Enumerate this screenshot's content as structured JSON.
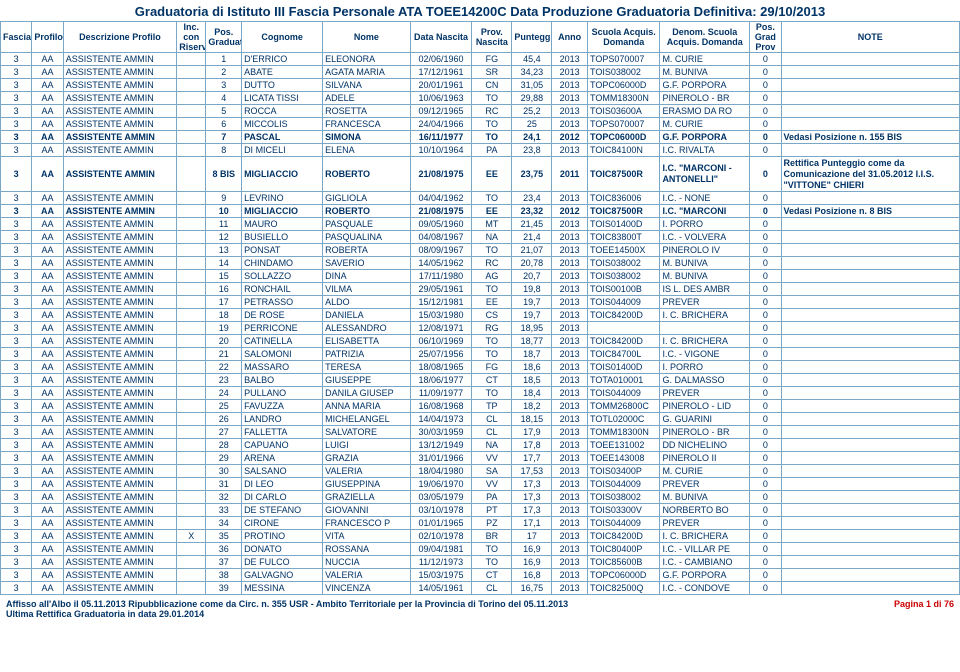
{
  "title": "Graduatoria di Istituto III Fascia Personale ATA TOEE14200C Data Produzione Graduatoria Definitiva: 29/10/2013",
  "headers": {
    "fascia": "Fascia",
    "profilo": "Profilo",
    "desc": "Descrizione Profilo",
    "inc": "Inc. con Riserva",
    "pos": "Pos. Graduatoria",
    "cognome": "Cognome",
    "nome": "Nome",
    "data": "Data Nascita",
    "provn": "Prov. Nascita",
    "punt": "Punteggio",
    "anno": "Anno",
    "scuola": "Scuola Acquis. Domanda",
    "denom": "Denom. Scuola Acquis. Domanda",
    "grad": "Pos. Grad Prov",
    "note": "NOTE"
  },
  "rows": [
    {
      "f": "3",
      "p": "AA",
      "d": "ASSISTENTE AMMIN",
      "i": "",
      "pos": "1",
      "cog": "D'ERRICO",
      "nom": "ELEONORA",
      "dn": "02/06/1960",
      "pv": "FG",
      "pt": "45,4",
      "an": "2013",
      "sc": "TOPS070007",
      "de": "M. CURIE",
      "g": "0",
      "nt": "",
      "b": false
    },
    {
      "f": "3",
      "p": "AA",
      "d": "ASSISTENTE AMMIN",
      "i": "",
      "pos": "2",
      "cog": "ABATE",
      "nom": "AGATA MARIA",
      "dn": "17/12/1961",
      "pv": "SR",
      "pt": "34,23",
      "an": "2013",
      "sc": "TOIS038002",
      "de": "M. BUNIVA",
      "g": "0",
      "nt": "",
      "b": false
    },
    {
      "f": "3",
      "p": "AA",
      "d": "ASSISTENTE AMMIN",
      "i": "",
      "pos": "3",
      "cog": "DUTTO",
      "nom": "SILVANA",
      "dn": "20/01/1961",
      "pv": "CN",
      "pt": "31,05",
      "an": "2013",
      "sc": "TOPC06000D",
      "de": "G.F. PORPORA",
      "g": "0",
      "nt": "",
      "b": false
    },
    {
      "f": "3",
      "p": "AA",
      "d": "ASSISTENTE AMMIN",
      "i": "",
      "pos": "4",
      "cog": "LICATA TISSI",
      "nom": "ADELE",
      "dn": "10/06/1963",
      "pv": "TO",
      "pt": "29,88",
      "an": "2013",
      "sc": "TOMM18300N",
      "de": "PINEROLO - BR",
      "g": "0",
      "nt": "",
      "b": false
    },
    {
      "f": "3",
      "p": "AA",
      "d": "ASSISTENTE AMMIN",
      "i": "",
      "pos": "5",
      "cog": "ROCCA",
      "nom": "ROSETTA",
      "dn": "09/12/1965",
      "pv": "RC",
      "pt": "25,2",
      "an": "2013",
      "sc": "TOIS03600A",
      "de": "ERASMO DA RO",
      "g": "0",
      "nt": "",
      "b": false
    },
    {
      "f": "3",
      "p": "AA",
      "d": "ASSISTENTE AMMIN",
      "i": "",
      "pos": "6",
      "cog": "MICCOLIS",
      "nom": "FRANCESCA",
      "dn": "24/04/1966",
      "pv": "TO",
      "pt": "25",
      "an": "2013",
      "sc": "TOPS070007",
      "de": "M. CURIE",
      "g": "0",
      "nt": "",
      "b": false
    },
    {
      "f": "3",
      "p": "AA",
      "d": "ASSISTENTE AMMIN",
      "i": "",
      "pos": "7",
      "cog": "PASCAL",
      "nom": "SIMONA",
      "dn": "16/11/1977",
      "pv": "TO",
      "pt": "24,1",
      "an": "2012",
      "sc": "TOPC06000D",
      "de": "G.F. PORPORA",
      "g": "0",
      "nt": "Vedasi Posizione n. 155 BIS",
      "b": true
    },
    {
      "f": "3",
      "p": "AA",
      "d": "ASSISTENTE AMMIN",
      "i": "",
      "pos": "8",
      "cog": "DI MICELI",
      "nom": "ELENA",
      "dn": "10/10/1964",
      "pv": "PA",
      "pt": "23,8",
      "an": "2013",
      "sc": "TOIC84100N",
      "de": "I.C. RIVALTA",
      "g": "0",
      "nt": "",
      "b": false
    },
    {
      "f": "3",
      "p": "AA",
      "d": "ASSISTENTE AMMIN",
      "i": "",
      "pos": "8 BIS",
      "cog": "MIGLIACCIO",
      "nom": "ROBERTO",
      "dn": "21/08/1975",
      "pv": "EE",
      "pt": "23,75",
      "an": "2011",
      "sc": "TOIC87500R",
      "de": "I.C. \"MARCONI - ANTONELLI\"",
      "g": "0",
      "nt": "Rettifica Punteggio come da Comunicazione del 31.05.2012 I.I.S. \"VITTONE\" CHIERI",
      "b": true,
      "tall": true
    },
    {
      "f": "3",
      "p": "AA",
      "d": "ASSISTENTE AMMIN",
      "i": "",
      "pos": "9",
      "cog": "LEVRINO",
      "nom": "GIGLIOLA",
      "dn": "04/04/1962",
      "pv": "TO",
      "pt": "23,4",
      "an": "2013",
      "sc": "TOIC836006",
      "de": "I.C. - NONE",
      "g": "0",
      "nt": "",
      "b": false
    },
    {
      "f": "3",
      "p": "AA",
      "d": "ASSISTENTE AMMIN",
      "i": "",
      "pos": "10",
      "cog": "MIGLIACCIO",
      "nom": "ROBERTO",
      "dn": "21/08/1975",
      "pv": "EE",
      "pt": "23,32",
      "an": "2012",
      "sc": "TOIC87500R",
      "de": "I.C. \"MARCONI",
      "g": "0",
      "nt": "Vedasi Posizione n. 8 BIS",
      "b": true
    },
    {
      "f": "3",
      "p": "AA",
      "d": "ASSISTENTE AMMIN",
      "i": "",
      "pos": "11",
      "cog": "MAURO",
      "nom": "PASQUALE",
      "dn": "09/05/1960",
      "pv": "MT",
      "pt": "21,45",
      "an": "2013",
      "sc": "TOIS01400D",
      "de": "I. PORRO",
      "g": "0",
      "nt": "",
      "b": false
    },
    {
      "f": "3",
      "p": "AA",
      "d": "ASSISTENTE AMMIN",
      "i": "",
      "pos": "12",
      "cog": "BUSIELLO",
      "nom": "PASQUALINA",
      "dn": "04/08/1967",
      "pv": "NA",
      "pt": "21,4",
      "an": "2013",
      "sc": "TOIC83800T",
      "de": "I.C. - VOLVERA",
      "g": "0",
      "nt": "",
      "b": false
    },
    {
      "f": "3",
      "p": "AA",
      "d": "ASSISTENTE AMMIN",
      "i": "",
      "pos": "13",
      "cog": "PONSAT",
      "nom": "ROBERTA",
      "dn": "08/09/1967",
      "pv": "TO",
      "pt": "21,07",
      "an": "2013",
      "sc": "TOEE14500X",
      "de": "PINEROLO IV",
      "g": "0",
      "nt": "",
      "b": false
    },
    {
      "f": "3",
      "p": "AA",
      "d": "ASSISTENTE AMMIN",
      "i": "",
      "pos": "14",
      "cog": "CHINDAMO",
      "nom": "SAVERIO",
      "dn": "14/05/1962",
      "pv": "RC",
      "pt": "20,78",
      "an": "2013",
      "sc": "TOIS038002",
      "de": "M. BUNIVA",
      "g": "0",
      "nt": "",
      "b": false
    },
    {
      "f": "3",
      "p": "AA",
      "d": "ASSISTENTE AMMIN",
      "i": "",
      "pos": "15",
      "cog": "SOLLAZZO",
      "nom": "DINA",
      "dn": "17/11/1980",
      "pv": "AG",
      "pt": "20,7",
      "an": "2013",
      "sc": "TOIS038002",
      "de": "M. BUNIVA",
      "g": "0",
      "nt": "",
      "b": false
    },
    {
      "f": "3",
      "p": "AA",
      "d": "ASSISTENTE AMMIN",
      "i": "",
      "pos": "16",
      "cog": "RONCHAIL",
      "nom": "VILMA",
      "dn": "29/05/1961",
      "pv": "TO",
      "pt": "19,8",
      "an": "2013",
      "sc": "TOIS00100B",
      "de": "IS L. DES AMBR",
      "g": "0",
      "nt": "",
      "b": false
    },
    {
      "f": "3",
      "p": "AA",
      "d": "ASSISTENTE AMMIN",
      "i": "",
      "pos": "17",
      "cog": "PETRASSO",
      "nom": "ALDO",
      "dn": "15/12/1981",
      "pv": "EE",
      "pt": "19,7",
      "an": "2013",
      "sc": "TOIS044009",
      "de": "PREVER",
      "g": "0",
      "nt": "",
      "b": false
    },
    {
      "f": "3",
      "p": "AA",
      "d": "ASSISTENTE AMMIN",
      "i": "",
      "pos": "18",
      "cog": "DE ROSE",
      "nom": "DANIELA",
      "dn": "15/03/1980",
      "pv": "CS",
      "pt": "19,7",
      "an": "2013",
      "sc": "TOIC84200D",
      "de": "I. C. BRICHERA",
      "g": "0",
      "nt": "",
      "b": false
    },
    {
      "f": "3",
      "p": "AA",
      "d": "ASSISTENTE AMMIN",
      "i": "",
      "pos": "19",
      "cog": "PERRICONE",
      "nom": "ALESSANDRO",
      "dn": "12/08/1971",
      "pv": "RG",
      "pt": "18,95",
      "an": "2013",
      "sc": "",
      "de": "",
      "g": "0",
      "nt": "",
      "b": false
    },
    {
      "f": "3",
      "p": "AA",
      "d": "ASSISTENTE AMMIN",
      "i": "",
      "pos": "20",
      "cog": "CATINELLA",
      "nom": "ELISABETTA",
      "dn": "06/10/1969",
      "pv": "TO",
      "pt": "18,77",
      "an": "2013",
      "sc": "TOIC84200D",
      "de": "I. C. BRICHERA",
      "g": "0",
      "nt": "",
      "b": false
    },
    {
      "f": "3",
      "p": "AA",
      "d": "ASSISTENTE AMMIN",
      "i": "",
      "pos": "21",
      "cog": "SALOMONI",
      "nom": "PATRIZIA",
      "dn": "25/07/1956",
      "pv": "TO",
      "pt": "18,7",
      "an": "2013",
      "sc": "TOIC84700L",
      "de": "I.C. - VIGONE",
      "g": "0",
      "nt": "",
      "b": false
    },
    {
      "f": "3",
      "p": "AA",
      "d": "ASSISTENTE AMMIN",
      "i": "",
      "pos": "22",
      "cog": "MASSARO",
      "nom": "TERESA",
      "dn": "18/08/1965",
      "pv": "FG",
      "pt": "18,6",
      "an": "2013",
      "sc": "TOIS01400D",
      "de": "I. PORRO",
      "g": "0",
      "nt": "",
      "b": false
    },
    {
      "f": "3",
      "p": "AA",
      "d": "ASSISTENTE AMMIN",
      "i": "",
      "pos": "23",
      "cog": "BALBO",
      "nom": "GIUSEPPE",
      "dn": "18/06/1977",
      "pv": "CT",
      "pt": "18,5",
      "an": "2013",
      "sc": "TOTA010001",
      "de": "G. DALMASSO",
      "g": "0",
      "nt": "",
      "b": false
    },
    {
      "f": "3",
      "p": "AA",
      "d": "ASSISTENTE AMMIN",
      "i": "",
      "pos": "24",
      "cog": "PULLANO",
      "nom": "DANILA GIUSEP",
      "dn": "11/09/1977",
      "pv": "TO",
      "pt": "18,4",
      "an": "2013",
      "sc": "TOIS044009",
      "de": "PREVER",
      "g": "0",
      "nt": "",
      "b": false
    },
    {
      "f": "3",
      "p": "AA",
      "d": "ASSISTENTE AMMIN",
      "i": "",
      "pos": "25",
      "cog": "FAVUZZA",
      "nom": "ANNA MARIA",
      "dn": "16/08/1968",
      "pv": "TP",
      "pt": "18,2",
      "an": "2013",
      "sc": "TOMM26800C",
      "de": "PINEROLO - LID",
      "g": "0",
      "nt": "",
      "b": false
    },
    {
      "f": "3",
      "p": "AA",
      "d": "ASSISTENTE AMMIN",
      "i": "",
      "pos": "26",
      "cog": "LANDRO",
      "nom": "MICHELANGEL",
      "dn": "14/04/1973",
      "pv": "CL",
      "pt": "18,15",
      "an": "2013",
      "sc": "TOTL02000C",
      "de": "G. GUARINI",
      "g": "0",
      "nt": "",
      "b": false
    },
    {
      "f": "3",
      "p": "AA",
      "d": "ASSISTENTE AMMIN",
      "i": "",
      "pos": "27",
      "cog": "FALLETTA",
      "nom": "SALVATORE",
      "dn": "30/03/1959",
      "pv": "CL",
      "pt": "17,9",
      "an": "2013",
      "sc": "TOMM18300N",
      "de": "PINEROLO - BR",
      "g": "0",
      "nt": "",
      "b": false
    },
    {
      "f": "3",
      "p": "AA",
      "d": "ASSISTENTE AMMIN",
      "i": "",
      "pos": "28",
      "cog": "CAPUANO",
      "nom": "LUIGI",
      "dn": "13/12/1949",
      "pv": "NA",
      "pt": "17,8",
      "an": "2013",
      "sc": "TOEE131002",
      "de": "DD NICHELINO",
      "g": "0",
      "nt": "",
      "b": false
    },
    {
      "f": "3",
      "p": "AA",
      "d": "ASSISTENTE AMMIN",
      "i": "",
      "pos": "29",
      "cog": "ARENA",
      "nom": "GRAZIA",
      "dn": "31/01/1966",
      "pv": "VV",
      "pt": "17,7",
      "an": "2013",
      "sc": "TOEE143008",
      "de": "PINEROLO II",
      "g": "0",
      "nt": "",
      "b": false
    },
    {
      "f": "3",
      "p": "AA",
      "d": "ASSISTENTE AMMIN",
      "i": "",
      "pos": "30",
      "cog": "SALSANO",
      "nom": "VALERIA",
      "dn": "18/04/1980",
      "pv": "SA",
      "pt": "17,53",
      "an": "2013",
      "sc": "TOIS03400P",
      "de": "M. CURIE",
      "g": "0",
      "nt": "",
      "b": false
    },
    {
      "f": "3",
      "p": "AA",
      "d": "ASSISTENTE AMMIN",
      "i": "",
      "pos": "31",
      "cog": "DI LEO",
      "nom": "GIUSEPPINA",
      "dn": "19/06/1970",
      "pv": "VV",
      "pt": "17,3",
      "an": "2013",
      "sc": "TOIS044009",
      "de": "PREVER",
      "g": "0",
      "nt": "",
      "b": false
    },
    {
      "f": "3",
      "p": "AA",
      "d": "ASSISTENTE AMMIN",
      "i": "",
      "pos": "32",
      "cog": "DI CARLO",
      "nom": "GRAZIELLA",
      "dn": "03/05/1979",
      "pv": "PA",
      "pt": "17,3",
      "an": "2013",
      "sc": "TOIS038002",
      "de": "M. BUNIVA",
      "g": "0",
      "nt": "",
      "b": false
    },
    {
      "f": "3",
      "p": "AA",
      "d": "ASSISTENTE AMMIN",
      "i": "",
      "pos": "33",
      "cog": "DE STEFANO",
      "nom": "GIOVANNI",
      "dn": "03/10/1978",
      "pv": "PT",
      "pt": "17,3",
      "an": "2013",
      "sc": "TOIS03300V",
      "de": "NORBERTO BO",
      "g": "0",
      "nt": "",
      "b": false
    },
    {
      "f": "3",
      "p": "AA",
      "d": "ASSISTENTE AMMIN",
      "i": "",
      "pos": "34",
      "cog": "CIRONE",
      "nom": "FRANCESCO P",
      "dn": "01/01/1965",
      "pv": "PZ",
      "pt": "17,1",
      "an": "2013",
      "sc": "TOIS044009",
      "de": "PREVER",
      "g": "0",
      "nt": "",
      "b": false
    },
    {
      "f": "3",
      "p": "AA",
      "d": "ASSISTENTE AMMIN",
      "i": "X",
      "pos": "35",
      "cog": "PROTINO",
      "nom": "VITA",
      "dn": "02/10/1978",
      "pv": "BR",
      "pt": "17",
      "an": "2013",
      "sc": "TOIC84200D",
      "de": "I. C. BRICHERA",
      "g": "0",
      "nt": "",
      "b": false
    },
    {
      "f": "3",
      "p": "AA",
      "d": "ASSISTENTE AMMIN",
      "i": "",
      "pos": "36",
      "cog": "DONATO",
      "nom": "ROSSANA",
      "dn": "09/04/1981",
      "pv": "TO",
      "pt": "16,9",
      "an": "2013",
      "sc": "TOIC80400P",
      "de": "I.C. - VILLAR PE",
      "g": "0",
      "nt": "",
      "b": false
    },
    {
      "f": "3",
      "p": "AA",
      "d": "ASSISTENTE AMMIN",
      "i": "",
      "pos": "37",
      "cog": "DE FULCO",
      "nom": "NUCCIA",
      "dn": "11/12/1973",
      "pv": "TO",
      "pt": "16,9",
      "an": "2013",
      "sc": "TOIC85600B",
      "de": "I.C. - CAMBIANO",
      "g": "0",
      "nt": "",
      "b": false
    },
    {
      "f": "3",
      "p": "AA",
      "d": "ASSISTENTE AMMIN",
      "i": "",
      "pos": "38",
      "cog": "GALVAGNO",
      "nom": "VALERIA",
      "dn": "15/03/1975",
      "pv": "CT",
      "pt": "16,8",
      "an": "2013",
      "sc": "TOPC06000D",
      "de": "G.F. PORPORA",
      "g": "0",
      "nt": "",
      "b": false
    },
    {
      "f": "3",
      "p": "AA",
      "d": "ASSISTENTE AMMIN",
      "i": "",
      "pos": "39",
      "cog": "MESSINA",
      "nom": "VINCENZA",
      "dn": "14/05/1961",
      "pv": "CL",
      "pt": "16,75",
      "an": "2013",
      "sc": "TOIC82500Q",
      "de": "I.C. - CONDOVE",
      "g": "0",
      "nt": "",
      "b": false
    }
  ],
  "footer": {
    "line1": "Affisso all'Albo il 05.11.2013 Ripubblicazione come da Circ. n. 355 USR - Ambito Territoriale per la Provincia di Torino del 05.11.2013",
    "line2": "Ultima Rettifica Graduatoria in data 29.01.2014",
    "page": "Pagina 1 di 76"
  }
}
